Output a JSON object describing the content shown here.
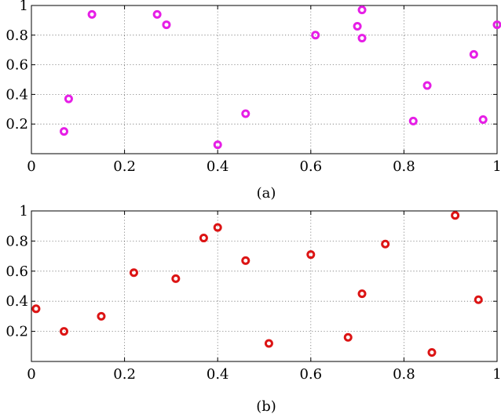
{
  "chart_data": [
    {
      "type": "scatter",
      "caption": "(a)",
      "marker": "circle",
      "color": "#e61ee6",
      "xlim": [
        0,
        1
      ],
      "ylim": [
        0,
        1
      ],
      "xticks": [
        0,
        0.2,
        0.4,
        0.6,
        0.8,
        1
      ],
      "xtick_labels": [
        "0",
        "0.2",
        "0.4",
        "0.6",
        "0.8",
        "1"
      ],
      "yticks": [
        0.2,
        0.4,
        0.6,
        0.8,
        1
      ],
      "ytick_labels": [
        "0.2",
        "0.4",
        "0.6",
        "0.8",
        "1"
      ],
      "grid": true,
      "points": [
        {
          "x": 0.07,
          "y": 0.15
        },
        {
          "x": 0.08,
          "y": 0.37
        },
        {
          "x": 0.13,
          "y": 0.94
        },
        {
          "x": 0.27,
          "y": 0.94
        },
        {
          "x": 0.29,
          "y": 0.87
        },
        {
          "x": 0.4,
          "y": 0.06
        },
        {
          "x": 0.46,
          "y": 0.27
        },
        {
          "x": 0.61,
          "y": 0.8
        },
        {
          "x": 0.7,
          "y": 0.86
        },
        {
          "x": 0.71,
          "y": 0.97
        },
        {
          "x": 0.71,
          "y": 0.78
        },
        {
          "x": 0.82,
          "y": 0.22
        },
        {
          "x": 0.85,
          "y": 0.46
        },
        {
          "x": 0.95,
          "y": 0.67
        },
        {
          "x": 0.97,
          "y": 0.23
        },
        {
          "x": 1.0,
          "y": 0.87
        }
      ]
    },
    {
      "type": "scatter",
      "caption": "(b)",
      "marker": "circle",
      "color": "#dc1414",
      "xlim": [
        0,
        1
      ],
      "ylim": [
        0,
        1
      ],
      "xticks": [
        0,
        0.2,
        0.4,
        0.6,
        0.8,
        1
      ],
      "xtick_labels": [
        "0",
        "0.2",
        "0.4",
        "0.6",
        "0.8",
        "1"
      ],
      "yticks": [
        0.2,
        0.4,
        0.6,
        0.8,
        1
      ],
      "ytick_labels": [
        "0.2",
        "0.4",
        "0.6",
        "0.8",
        "1"
      ],
      "grid": true,
      "points": [
        {
          "x": 0.01,
          "y": 0.35
        },
        {
          "x": 0.07,
          "y": 0.2
        },
        {
          "x": 0.15,
          "y": 0.3
        },
        {
          "x": 0.22,
          "y": 0.59
        },
        {
          "x": 0.31,
          "y": 0.55
        },
        {
          "x": 0.37,
          "y": 0.82
        },
        {
          "x": 0.4,
          "y": 0.89
        },
        {
          "x": 0.46,
          "y": 0.67
        },
        {
          "x": 0.51,
          "y": 0.12
        },
        {
          "x": 0.6,
          "y": 0.71
        },
        {
          "x": 0.68,
          "y": 0.16
        },
        {
          "x": 0.71,
          "y": 0.45
        },
        {
          "x": 0.76,
          "y": 0.78
        },
        {
          "x": 0.86,
          "y": 0.06
        },
        {
          "x": 0.91,
          "y": 0.97
        },
        {
          "x": 0.96,
          "y": 0.41
        }
      ]
    }
  ]
}
